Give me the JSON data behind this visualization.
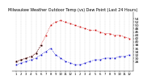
{
  "title": "Milwaukee Weather Outdoor Temp (vs) Dew Point (Last 24 Hours)",
  "bg_color": "#ffffff",
  "grid_color": "#bbbbbb",
  "temp_color": "#cc0000",
  "dew_color": "#0000cc",
  "black_color": "#000000",
  "temp_values": [
    28,
    29,
    30,
    31,
    33,
    38,
    44,
    50,
    52,
    53,
    52,
    51,
    50,
    49,
    48,
    47,
    47,
    46,
    45,
    45,
    44,
    44,
    43,
    42
  ],
  "dew_values": [
    26,
    27,
    28,
    29,
    30,
    32,
    34,
    36,
    32,
    30,
    28,
    27,
    26,
    26,
    27,
    28,
    29,
    29,
    30,
    30,
    30,
    31,
    31,
    32
  ],
  "black_values": [
    28,
    29,
    30,
    31,
    33,
    38,
    null,
    null,
    null,
    null,
    null,
    null,
    null,
    null,
    null,
    null,
    null,
    null,
    null,
    null,
    null,
    null,
    null,
    null
  ],
  "x_labels": [
    "1",
    "2",
    "3",
    "4",
    "5",
    "6",
    "7",
    "8",
    "9",
    "10",
    "11",
    "12",
    "1",
    "2",
    "3",
    "4",
    "5",
    "6",
    "7",
    "8",
    "9",
    "10",
    "11",
    "12"
  ],
  "ylim": [
    22,
    58
  ],
  "ytick_labels": [
    "28",
    "30",
    "32",
    "34",
    "36",
    "38",
    "40",
    "42",
    "44",
    "46",
    "48",
    "50",
    "52",
    "54"
  ],
  "ytick_vals": [
    28,
    30,
    32,
    34,
    36,
    38,
    40,
    42,
    44,
    46,
    48,
    50,
    52,
    54
  ],
  "ylabel_fontsize": 3.2,
  "xlabel_fontsize": 2.8,
  "title_fontsize": 3.5,
  "marker_size": 1.2,
  "line_width": 0.5
}
